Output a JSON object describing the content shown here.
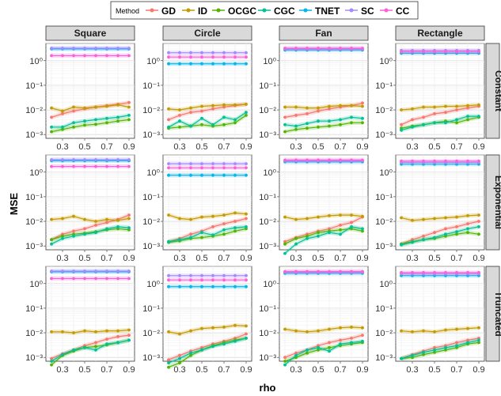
{
  "figure": {
    "legend_title": "Method",
    "xlabel": "rho",
    "ylabel": "MSE"
  },
  "chart_data": {
    "type": "line",
    "title": "",
    "xlabel": "rho",
    "ylabel": "MSE",
    "y_scale": "log10",
    "ylim": [
      0.0007,
      5
    ],
    "xlim": [
      0.15,
      0.95
    ],
    "x_ticks": [
      0.3,
      0.5,
      0.7,
      0.9
    ],
    "x_tick_labels": [
      "0.3",
      "0.5",
      "0.7",
      "0.9"
    ],
    "y_ticks": [
      0.001,
      0.01,
      0.1,
      1
    ],
    "y_tick_labels": [
      "10⁻³",
      "10⁻²",
      "10⁻¹",
      "10⁰"
    ],
    "grid": true,
    "legend_position": "top",
    "facet_columns": [
      "Square",
      "Circle",
      "Fan",
      "Rectangle"
    ],
    "facet_rows": [
      "Constant",
      "Exponential",
      "Truncated"
    ],
    "x": [
      0.2,
      0.3,
      0.4,
      0.5,
      0.6,
      0.7,
      0.8,
      0.9
    ],
    "methods": [
      {
        "name": "GD",
        "color": "#F8766D"
      },
      {
        "name": "ID",
        "color": "#C49A00"
      },
      {
        "name": "OCGC",
        "color": "#53B400"
      },
      {
        "name": "CGC",
        "color": "#00C094"
      },
      {
        "name": "TNET",
        "color": "#00B6EB"
      },
      {
        "name": "SC",
        "color": "#A58AFF"
      },
      {
        "name": "CC",
        "color": "#FB61D7"
      }
    ],
    "panels": [
      {
        "row": "Constant",
        "col": "Square",
        "series": {
          "GD": [
            0.005,
            0.007,
            0.009,
            0.011,
            0.013,
            0.015,
            0.017,
            0.02
          ],
          "ID": [
            0.012,
            0.009,
            0.013,
            0.012,
            0.013,
            0.014,
            0.016,
            0.013
          ],
          "OCGC": [
            0.0013,
            0.0016,
            0.002,
            0.0024,
            0.0026,
            0.003,
            0.0035,
            0.004
          ],
          "CGC": [
            0.002,
            0.002,
            0.003,
            0.0035,
            0.004,
            0.0045,
            0.005,
            0.006
          ],
          "TNET": [
            3.0,
            3.0,
            3.0,
            3.0,
            3.0,
            3.0,
            3.0,
            3.0
          ],
          "SC": [
            3.2,
            3.2,
            3.2,
            3.2,
            3.2,
            3.2,
            3.2,
            3.2
          ],
          "CC": [
            1.6,
            1.6,
            1.6,
            1.6,
            1.6,
            1.6,
            1.6,
            1.6
          ]
        }
      },
      {
        "row": "Constant",
        "col": "Circle",
        "series": {
          "GD": [
            0.004,
            0.006,
            0.008,
            0.009,
            0.011,
            0.013,
            0.015,
            0.017
          ],
          "ID": [
            0.011,
            0.01,
            0.012,
            0.014,
            0.015,
            0.016,
            0.016,
            0.017
          ],
          "OCGC": [
            0.0018,
            0.002,
            0.0022,
            0.0025,
            0.0022,
            0.0025,
            0.003,
            0.006
          ],
          "CGC": [
            0.002,
            0.0035,
            0.0022,
            0.0045,
            0.0025,
            0.005,
            0.004,
            0.008
          ],
          "TNET": [
            0.75,
            0.75,
            0.75,
            0.75,
            0.75,
            0.75,
            0.75,
            0.75
          ],
          "SC": [
            2.1,
            2.1,
            2.1,
            2.1,
            2.1,
            2.1,
            2.1,
            2.1
          ],
          "CC": [
            1.4,
            1.4,
            1.4,
            1.4,
            1.4,
            1.4,
            1.4,
            1.4
          ]
        }
      },
      {
        "row": "Constant",
        "col": "Fan",
        "series": {
          "GD": [
            0.005,
            0.006,
            0.007,
            0.009,
            0.011,
            0.013,
            0.015,
            0.019
          ],
          "ID": [
            0.013,
            0.013,
            0.012,
            0.012,
            0.014,
            0.015,
            0.015,
            0.014
          ],
          "OCGC": [
            0.0013,
            0.0016,
            0.0018,
            0.002,
            0.0022,
            0.0025,
            0.003,
            0.003
          ],
          "CGC": [
            0.0025,
            0.0022,
            0.0028,
            0.0035,
            0.0035,
            0.004,
            0.005,
            0.0045
          ],
          "TNET": [
            2.7,
            2.7,
            2.7,
            2.7,
            2.7,
            2.7,
            2.7,
            2.7
          ],
          "SC": [
            3.0,
            3.0,
            3.0,
            3.0,
            3.0,
            3.0,
            3.0,
            3.0
          ],
          "CC": [
            3.2,
            3.2,
            3.2,
            3.2,
            3.2,
            3.2,
            3.2,
            3.2
          ]
        }
      },
      {
        "row": "Constant",
        "col": "Rectangle",
        "series": {
          "GD": [
            0.0025,
            0.004,
            0.005,
            0.007,
            0.008,
            0.01,
            0.012,
            0.014
          ],
          "ID": [
            0.01,
            0.011,
            0.013,
            0.013,
            0.014,
            0.014,
            0.015,
            0.016
          ],
          "OCGC": [
            0.0018,
            0.0022,
            0.0025,
            0.003,
            0.0035,
            0.003,
            0.004,
            0.005
          ],
          "CGC": [
            0.0015,
            0.002,
            0.0025,
            0.003,
            0.003,
            0.004,
            0.0055,
            0.0055
          ],
          "TNET": [
            2.0,
            2.0,
            2.0,
            2.0,
            2.0,
            2.0,
            2.0,
            2.0
          ],
          "SC": [
            2.6,
            2.6,
            2.6,
            2.6,
            2.6,
            2.6,
            2.6,
            2.6
          ],
          "CC": [
            2.3,
            2.3,
            2.3,
            2.3,
            2.3,
            2.3,
            2.3,
            2.3
          ]
        }
      },
      {
        "row": "Exponential",
        "col": "Square",
        "series": {
          "GD": [
            0.0018,
            0.003,
            0.004,
            0.005,
            0.007,
            0.009,
            0.012,
            0.018
          ],
          "ID": [
            0.012,
            0.013,
            0.016,
            0.012,
            0.01,
            0.012,
            0.011,
            0.013
          ],
          "OCGC": [
            0.0018,
            0.0025,
            0.003,
            0.0033,
            0.0038,
            0.0045,
            0.005,
            0.0045
          ],
          "CGC": [
            0.0012,
            0.002,
            0.0025,
            0.003,
            0.0035,
            0.005,
            0.006,
            0.0055
          ],
          "TNET": [
            2.9,
            2.9,
            2.9,
            2.9,
            2.9,
            2.9,
            2.9,
            2.9
          ],
          "SC": [
            3.2,
            3.2,
            3.2,
            3.2,
            3.2,
            3.2,
            3.2,
            3.2
          ],
          "CC": [
            1.7,
            1.7,
            1.7,
            1.7,
            1.7,
            1.7,
            1.7,
            1.7
          ]
        }
      },
      {
        "row": "Exponential",
        "col": "Circle",
        "series": {
          "GD": [
            0.0015,
            0.002,
            0.003,
            0.004,
            0.006,
            0.008,
            0.01,
            0.013
          ],
          "ID": [
            0.018,
            0.013,
            0.012,
            0.015,
            0.016,
            0.018,
            0.022,
            0.02
          ],
          "OCGC": [
            0.0014,
            0.0016,
            0.002,
            0.0022,
            0.0025,
            0.003,
            0.004,
            0.005
          ],
          "CGC": [
            0.0015,
            0.0018,
            0.0022,
            0.0035,
            0.0028,
            0.0045,
            0.0055,
            0.006
          ],
          "TNET": [
            0.75,
            0.75,
            0.75,
            0.75,
            0.75,
            0.75,
            0.75,
            0.75
          ],
          "SC": [
            2.2,
            2.2,
            2.2,
            2.2,
            2.2,
            2.2,
            2.2,
            2.2
          ],
          "CC": [
            1.5,
            1.5,
            1.5,
            1.5,
            1.5,
            1.5,
            1.5,
            1.5
          ]
        }
      },
      {
        "row": "Exponential",
        "col": "Fan",
        "series": {
          "GD": [
            0.0015,
            0.0022,
            0.003,
            0.004,
            0.005,
            0.007,
            0.009,
            0.015
          ],
          "ID": [
            0.015,
            0.012,
            0.013,
            0.015,
            0.017,
            0.018,
            0.018,
            0.016
          ],
          "OCGC": [
            0.0012,
            0.002,
            0.0025,
            0.0035,
            0.004,
            0.0045,
            0.005,
            0.004
          ],
          "CGC": [
            0.0005,
            0.0012,
            0.002,
            0.0025,
            0.0035,
            0.003,
            0.006,
            0.005
          ],
          "TNET": [
            2.6,
            2.6,
            2.6,
            2.6,
            2.6,
            2.6,
            2.6,
            2.6
          ],
          "SC": [
            2.9,
            2.9,
            2.9,
            2.9,
            2.9,
            2.9,
            2.9,
            2.9
          ],
          "CC": [
            3.1,
            3.1,
            3.1,
            3.1,
            3.1,
            3.1,
            3.1,
            3.1
          ]
        }
      },
      {
        "row": "Exponential",
        "col": "Rectangle",
        "series": {
          "GD": [
            0.0012,
            0.0018,
            0.0025,
            0.0035,
            0.005,
            0.006,
            0.008,
            0.01
          ],
          "ID": [
            0.014,
            0.011,
            0.012,
            0.013,
            0.014,
            0.015,
            0.017,
            0.018
          ],
          "OCGC": [
            0.0012,
            0.0015,
            0.0018,
            0.002,
            0.0025,
            0.003,
            0.0035,
            0.003
          ],
          "CGC": [
            0.0011,
            0.0014,
            0.0018,
            0.0022,
            0.003,
            0.0038,
            0.005,
            0.006
          ],
          "TNET": [
            2.1,
            2.1,
            2.1,
            2.1,
            2.1,
            2.1,
            2.1,
            2.1
          ],
          "SC": [
            2.5,
            2.5,
            2.5,
            2.5,
            2.5,
            2.5,
            2.5,
            2.5
          ],
          "CC": [
            2.8,
            2.8,
            2.8,
            2.8,
            2.8,
            2.8,
            2.8,
            2.8
          ]
        }
      },
      {
        "row": "Truncated",
        "col": "Square",
        "series": {
          "GD": [
            0.0009,
            0.0014,
            0.002,
            0.003,
            0.004,
            0.0055,
            0.007,
            0.008
          ],
          "ID": [
            0.011,
            0.011,
            0.01,
            0.012,
            0.011,
            0.012,
            0.012,
            0.013
          ],
          "OCGC": [
            0.0005,
            0.0012,
            0.0018,
            0.0025,
            0.0028,
            0.0032,
            0.004,
            0.005
          ],
          "CGC": [
            0.0007,
            0.0013,
            0.002,
            0.0025,
            0.002,
            0.0035,
            0.004,
            0.005
          ],
          "TNET": [
            3.0,
            3.0,
            3.0,
            3.0,
            3.0,
            3.0,
            3.0,
            3.0
          ],
          "SC": [
            3.2,
            3.2,
            3.2,
            3.2,
            3.2,
            3.2,
            3.2,
            3.2
          ],
          "CC": [
            1.6,
            1.6,
            1.6,
            1.6,
            1.6,
            1.6,
            1.6,
            1.6
          ]
        }
      },
      {
        "row": "Truncated",
        "col": "Circle",
        "series": {
          "GD": [
            0.0008,
            0.0012,
            0.0018,
            0.0025,
            0.0035,
            0.0045,
            0.006,
            0.009
          ],
          "ID": [
            0.011,
            0.009,
            0.012,
            0.015,
            0.016,
            0.017,
            0.02,
            0.019
          ],
          "OCGC": [
            0.0004,
            0.0006,
            0.0012,
            0.002,
            0.003,
            0.004,
            0.005,
            0.006
          ],
          "CGC": [
            0.0006,
            0.0009,
            0.0015,
            0.002,
            0.0028,
            0.0035,
            0.0045,
            0.006
          ],
          "TNET": [
            0.75,
            0.75,
            0.75,
            0.75,
            0.75,
            0.75,
            0.75,
            0.75
          ],
          "SC": [
            2.1,
            2.1,
            2.1,
            2.1,
            2.1,
            2.1,
            2.1,
            2.1
          ],
          "CC": [
            1.4,
            1.4,
            1.4,
            1.4,
            1.4,
            1.4,
            1.4,
            1.4
          ]
        }
      },
      {
        "row": "Truncated",
        "col": "Fan",
        "series": {
          "GD": [
            0.001,
            0.0015,
            0.002,
            0.003,
            0.004,
            0.005,
            0.006,
            0.008
          ],
          "ID": [
            0.014,
            0.012,
            0.011,
            0.012,
            0.014,
            0.016,
            0.017,
            0.016
          ],
          "OCGC": [
            0.0007,
            0.001,
            0.0015,
            0.002,
            0.0025,
            0.003,
            0.0035,
            0.004
          ],
          "CGC": [
            0.0005,
            0.0012,
            0.002,
            0.0025,
            0.0018,
            0.0035,
            0.004,
            0.0045
          ],
          "TNET": [
            2.6,
            2.6,
            2.6,
            2.6,
            2.6,
            2.6,
            2.6,
            2.6
          ],
          "SC": [
            2.9,
            2.9,
            2.9,
            2.9,
            2.9,
            2.9,
            2.9,
            2.9
          ],
          "CC": [
            3.1,
            3.1,
            3.1,
            3.1,
            3.1,
            3.1,
            3.1,
            3.1
          ]
        }
      },
      {
        "row": "Truncated",
        "col": "Rectangle",
        "series": {
          "GD": [
            0.0009,
            0.0013,
            0.0018,
            0.0025,
            0.003,
            0.004,
            0.005,
            0.006
          ],
          "ID": [
            0.012,
            0.011,
            0.012,
            0.011,
            0.013,
            0.014,
            0.015,
            0.016
          ],
          "OCGC": [
            0.0009,
            0.001,
            0.0013,
            0.0016,
            0.002,
            0.0025,
            0.0035,
            0.004
          ],
          "CGC": [
            0.0009,
            0.0012,
            0.0016,
            0.002,
            0.0025,
            0.003,
            0.004,
            0.005
          ],
          "TNET": [
            2.1,
            2.1,
            2.1,
            2.1,
            2.1,
            2.1,
            2.1,
            2.1
          ],
          "SC": [
            2.5,
            2.5,
            2.5,
            2.5,
            2.5,
            2.5,
            2.5,
            2.5
          ],
          "CC": [
            2.8,
            2.8,
            2.8,
            2.8,
            2.8,
            2.8,
            2.8,
            2.8
          ]
        }
      }
    ]
  }
}
